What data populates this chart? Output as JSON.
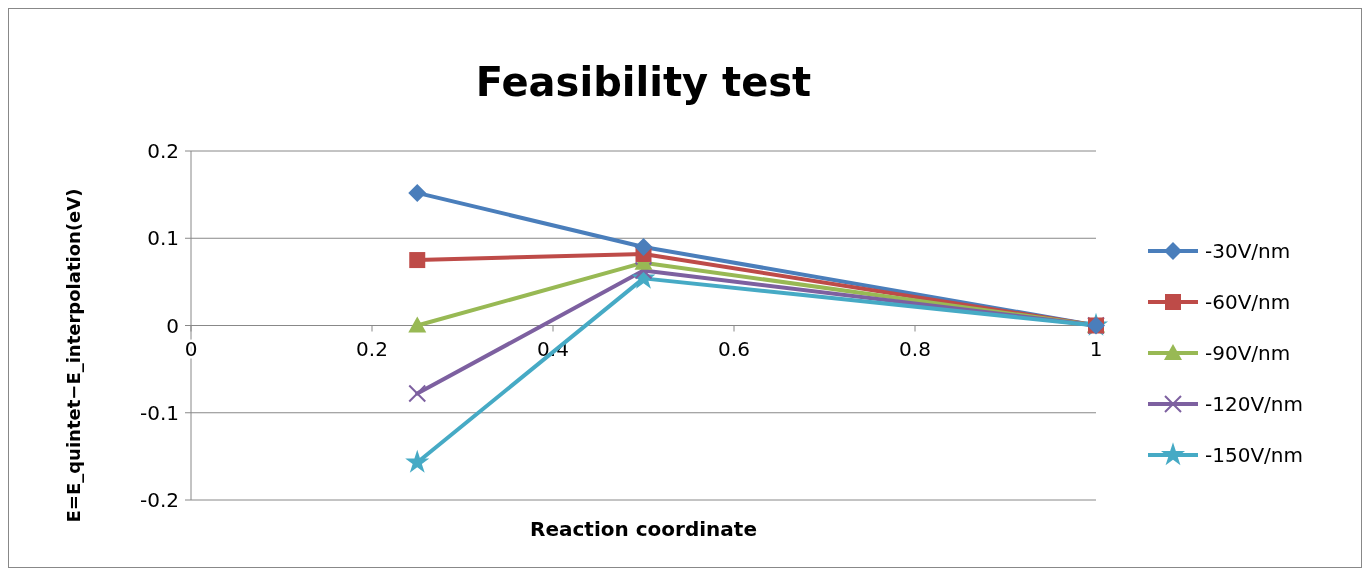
{
  "chart_data": {
    "type": "line",
    "title": "Feasibility test",
    "xlabel": "Reaction coordinate",
    "ylabel": "E=E_quintet−E_interpolation(eV)",
    "x": [
      0.25,
      0.5,
      1
    ],
    "xlim": [
      0,
      1
    ],
    "xticks": [
      0,
      0.2,
      0.4,
      0.6,
      0.8,
      1
    ],
    "ylim": [
      -0.2,
      0.2
    ],
    "yticks": [
      -0.2,
      -0.1,
      0,
      0.1,
      0.2
    ],
    "grid": "y",
    "legend": "right",
    "series": [
      {
        "name": "-30V/nm",
        "color": "#4a7ebb",
        "marker": "diamond",
        "values": [
          0.152,
          0.09,
          0
        ]
      },
      {
        "name": "-60V/nm",
        "color": "#be4b48",
        "marker": "square",
        "values": [
          0.075,
          0.082,
          0
        ]
      },
      {
        "name": "-90V/nm",
        "color": "#98b954",
        "marker": "triangle",
        "values": [
          0,
          0.072,
          0
        ]
      },
      {
        "name": "-120V/nm",
        "color": "#7d60a0",
        "marker": "cross",
        "values": [
          -0.078,
          0.063,
          0
        ]
      },
      {
        "name": "-150V/nm",
        "color": "#46aac5",
        "marker": "star",
        "values": [
          -0.157,
          0.054,
          0
        ]
      }
    ]
  }
}
